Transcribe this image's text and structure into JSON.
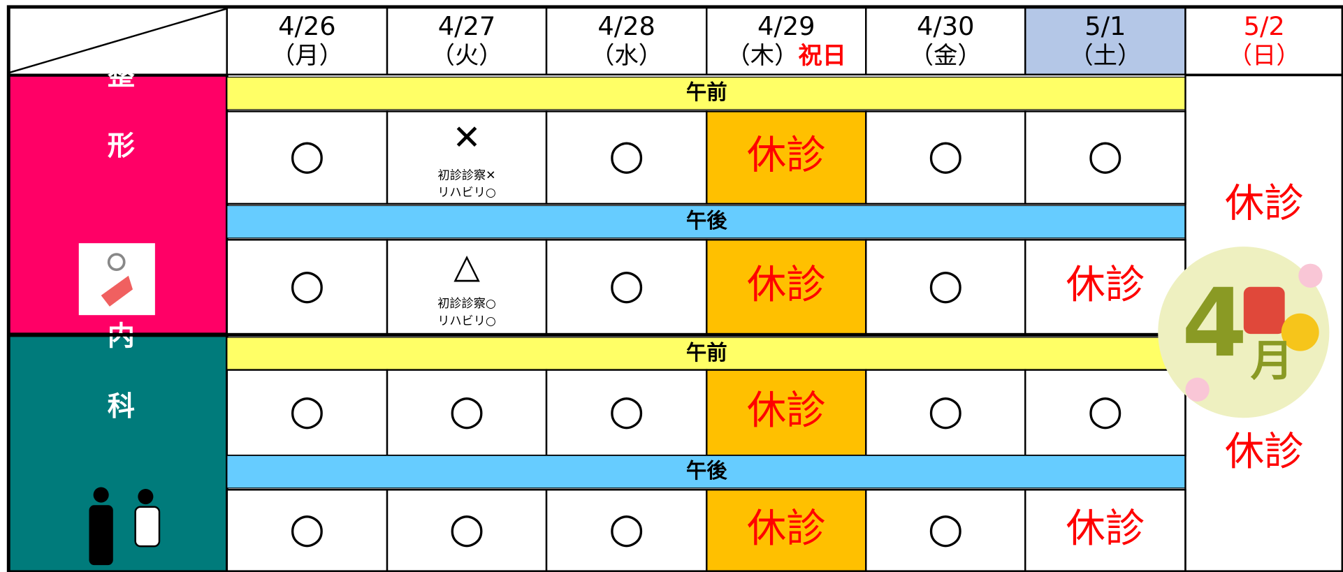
{
  "header": {
    "days": [
      {
        "date": "4/26",
        "weekday": "（月）"
      },
      {
        "date": "4/27",
        "weekday": "（火）"
      },
      {
        "date": "4/28",
        "weekday": "（水）"
      },
      {
        "date": "4/29",
        "weekday": "（木）",
        "holiday": "祝日"
      },
      {
        "date": "4/30",
        "weekday": "（金）"
      },
      {
        "date": "5/1",
        "weekday": "（土）",
        "background": "#b4c7e7"
      },
      {
        "date": "5/2",
        "weekday": "（日）",
        "color": "#ff0000"
      }
    ]
  },
  "departments": [
    {
      "name": "整形",
      "color": "#ff0066",
      "closed": "休診",
      "sessions": [
        {
          "label": "午前",
          "color": "#ffff66",
          "cells": [
            {
              "mark": "○"
            },
            {
              "mark": "✕",
              "notes": [
                "初診診察✕",
                "リハビリ○"
              ]
            },
            {
              "mark": "○"
            },
            {
              "mark": "休診"
            },
            {
              "mark": "○"
            },
            {
              "mark": "○"
            }
          ]
        },
        {
          "label": "午後",
          "color": "#66ccff",
          "cells": [
            {
              "mark": "○"
            },
            {
              "mark": "△",
              "notes": [
                "初診診察○",
                "リハビリ○"
              ]
            },
            {
              "mark": "○"
            },
            {
              "mark": "休診"
            },
            {
              "mark": "○"
            },
            {
              "mark": "休診"
            }
          ]
        }
      ]
    },
    {
      "name": "内科",
      "color": "#007b7b",
      "closed": "休診",
      "sessions": [
        {
          "label": "午前",
          "color": "#ffff66",
          "cells": [
            {
              "mark": "○"
            },
            {
              "mark": "○"
            },
            {
              "mark": "○"
            },
            {
              "mark": "休診"
            },
            {
              "mark": "○"
            },
            {
              "mark": "○"
            }
          ]
        },
        {
          "label": "午後",
          "color": "#66ccff",
          "cells": [
            {
              "mark": "○"
            },
            {
              "mark": "○"
            },
            {
              "mark": "○"
            },
            {
              "mark": "休診"
            },
            {
              "mark": "○"
            },
            {
              "mark": "休診"
            }
          ]
        }
      ]
    }
  ],
  "badge": {
    "number": "4",
    "unit": "月"
  }
}
